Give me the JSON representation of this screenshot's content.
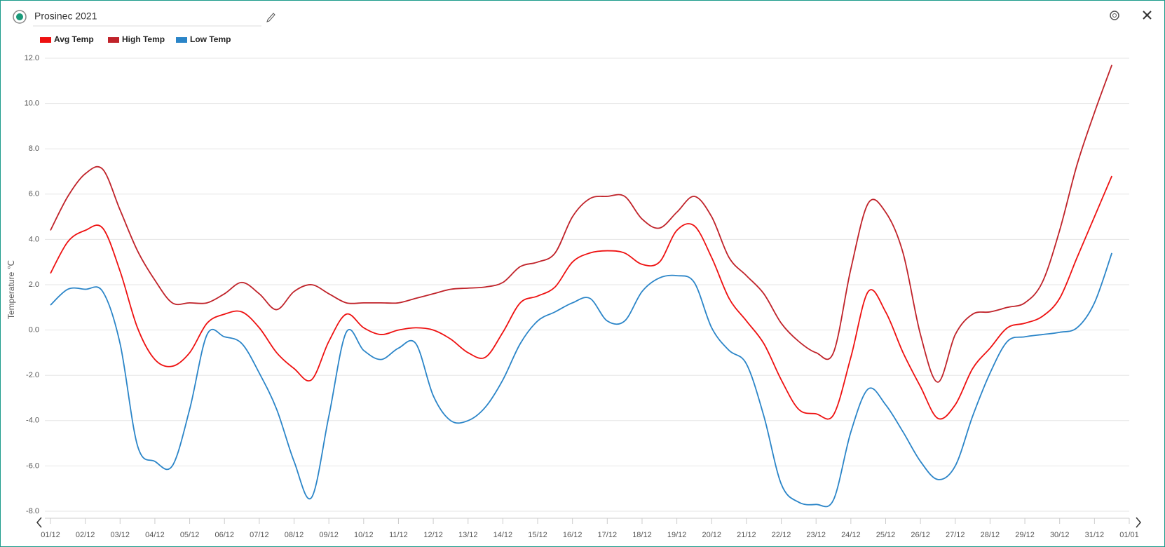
{
  "header": {
    "title": "Prosinec 2021"
  },
  "chart_data": {
    "type": "line",
    "y_label": "Temperature ℃",
    "x": [
      0,
      0.5,
      1,
      1.5,
      2,
      2.5,
      3,
      3.5,
      4,
      4.5,
      5,
      5.5,
      6,
      6.5,
      7,
      7.5,
      8,
      8.5,
      9,
      9.5,
      10,
      10.5,
      11,
      11.5,
      12,
      12.5,
      13,
      13.5,
      14,
      14.5,
      15,
      15.5,
      16,
      16.5,
      17,
      17.5,
      18,
      18.5,
      19,
      19.5,
      20,
      20.5,
      21,
      21.5,
      22,
      22.5,
      23,
      23.5,
      24,
      24.5,
      25,
      25.5,
      26,
      26.5,
      27,
      27.5,
      28,
      28.5,
      29,
      29.5,
      30,
      30.5
    ],
    "series": [
      {
        "name": "Avg Temp",
        "color": "#ee1111",
        "values": [
          2.5,
          3.9,
          4.4,
          4.5,
          2.6,
          0.1,
          -1.3,
          -1.6,
          -1.0,
          0.3,
          0.7,
          0.8,
          0.1,
          -1.0,
          -1.7,
          -2.2,
          -0.5,
          0.7,
          0.1,
          -0.2,
          0.0,
          0.1,
          0.0,
          -0.4,
          -1.0,
          -1.2,
          -0.1,
          1.2,
          1.5,
          1.9,
          3.0,
          3.4,
          3.5,
          3.4,
          2.9,
          3.0,
          4.4,
          4.6,
          3.2,
          1.4,
          0.4,
          -0.6,
          -2.2,
          -3.5,
          -3.7,
          -3.75,
          -1.2,
          1.7,
          0.8,
          -1.0,
          -2.5,
          -3.9,
          -3.3,
          -1.7,
          -0.8,
          0.1,
          0.3,
          0.6,
          1.4,
          3.2,
          5.0,
          6.8
        ]
      },
      {
        "name": "High Temp",
        "color": "#c0232a",
        "values": [
          4.4,
          5.9,
          6.9,
          7.1,
          5.3,
          3.5,
          2.2,
          1.2,
          1.2,
          1.2,
          1.6,
          2.1,
          1.6,
          0.9,
          1.7,
          2.0,
          1.6,
          1.2,
          1.2,
          1.2,
          1.2,
          1.4,
          1.6,
          1.8,
          1.85,
          1.9,
          2.1,
          2.8,
          3.0,
          3.4,
          5.0,
          5.8,
          5.9,
          5.9,
          4.9,
          4.5,
          5.2,
          5.9,
          5.0,
          3.2,
          2.4,
          1.6,
          0.3,
          -0.5,
          -1.0,
          -1.0,
          2.7,
          5.6,
          5.2,
          3.4,
          -0.2,
          -2.3,
          -0.2,
          0.7,
          0.8,
          1.0,
          1.2,
          2.1,
          4.4,
          7.3,
          9.6,
          11.7
        ]
      },
      {
        "name": "Low Temp",
        "color": "#2b85c8",
        "values": [
          1.1,
          1.8,
          1.8,
          1.7,
          -0.6,
          -5.1,
          -5.8,
          -6.0,
          -3.5,
          -0.2,
          -0.3,
          -0.6,
          -1.9,
          -3.5,
          -5.8,
          -7.4,
          -3.8,
          -0.1,
          -0.9,
          -1.3,
          -0.8,
          -0.6,
          -2.9,
          -4.0,
          -4.0,
          -3.4,
          -2.2,
          -0.6,
          0.4,
          0.8,
          1.2,
          1.4,
          0.4,
          0.4,
          1.7,
          2.3,
          2.4,
          2.1,
          0.1,
          -0.9,
          -1.5,
          -3.8,
          -6.8,
          -7.6,
          -7.7,
          -7.5,
          -4.5,
          -2.6,
          -3.3,
          -4.5,
          -5.8,
          -6.6,
          -6.0,
          -3.8,
          -1.9,
          -0.5,
          -0.3,
          -0.2,
          -0.1,
          0.1,
          1.2,
          3.4
        ]
      }
    ],
    "xlim": [
      0,
      31
    ],
    "xticks": [
      {
        "value": 0,
        "label": "01/12"
      },
      {
        "value": 1,
        "label": "02/12"
      },
      {
        "value": 2,
        "label": "03/12"
      },
      {
        "value": 3,
        "label": "04/12"
      },
      {
        "value": 4,
        "label": "05/12"
      },
      {
        "value": 5,
        "label": "06/12"
      },
      {
        "value": 6,
        "label": "07/12"
      },
      {
        "value": 7,
        "label": "08/12"
      },
      {
        "value": 8,
        "label": "09/12"
      },
      {
        "value": 9,
        "label": "10/12"
      },
      {
        "value": 10,
        "label": "11/12"
      },
      {
        "value": 11,
        "label": "12/12"
      },
      {
        "value": 12,
        "label": "13/12"
      },
      {
        "value": 13,
        "label": "14/12"
      },
      {
        "value": 14,
        "label": "15/12"
      },
      {
        "value": 15,
        "label": "16/12"
      },
      {
        "value": 16,
        "label": "17/12"
      },
      {
        "value": 17,
        "label": "18/12"
      },
      {
        "value": 18,
        "label": "19/12"
      },
      {
        "value": 19,
        "label": "20/12"
      },
      {
        "value": 20,
        "label": "21/12"
      },
      {
        "value": 21,
        "label": "22/12"
      },
      {
        "value": 22,
        "label": "23/12"
      },
      {
        "value": 23,
        "label": "24/12"
      },
      {
        "value": 24,
        "label": "25/12"
      },
      {
        "value": 25,
        "label": "26/12"
      },
      {
        "value": 26,
        "label": "27/12"
      },
      {
        "value": 27,
        "label": "28/12"
      },
      {
        "value": 28,
        "label": "29/12"
      },
      {
        "value": 29,
        "label": "30/12"
      },
      {
        "value": 30,
        "label": "31/12"
      },
      {
        "value": 31,
        "label": "01/01"
      }
    ],
    "ylim": [
      -8,
      12
    ],
    "yticks": [
      {
        "value": -8,
        "label": "-8.0"
      },
      {
        "value": -6,
        "label": "-6.0"
      },
      {
        "value": -4,
        "label": "-4.0"
      },
      {
        "value": -2,
        "label": "-2.0"
      },
      {
        "value": 0,
        "label": "0.0"
      },
      {
        "value": 2,
        "label": "2.0"
      },
      {
        "value": 4,
        "label": "4.0"
      },
      {
        "value": 6,
        "label": "6.0"
      },
      {
        "value": 8,
        "label": "8.0"
      },
      {
        "value": 10,
        "label": "10.0"
      },
      {
        "value": 12,
        "label": "12.0"
      }
    ],
    "grid": true,
    "legend": "top-left"
  }
}
